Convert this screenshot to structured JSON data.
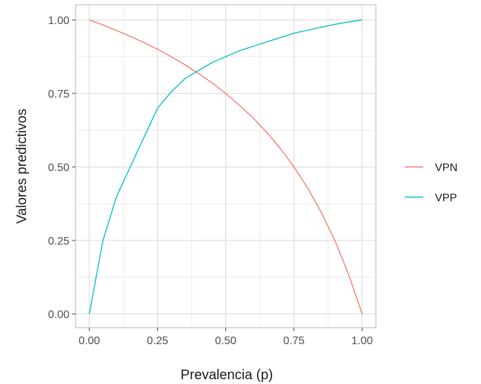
{
  "chart_data": {
    "type": "line",
    "title": "",
    "xlabel": "Prevalencia (p)",
    "ylabel": "Valores predictivos",
    "xlim": [
      0,
      1
    ],
    "ylim": [
      0,
      1
    ],
    "x_ticks": [
      "0.00",
      "0.25",
      "0.50",
      "0.75",
      "1.00"
    ],
    "y_ticks": [
      "0.00",
      "0.25",
      "0.50",
      "0.75",
      "1.00"
    ],
    "grid": true,
    "legend_position": "right",
    "x": [
      0,
      0.05,
      0.1,
      0.15,
      0.2,
      0.25,
      0.3,
      0.35,
      0.4,
      0.45,
      0.5,
      0.55,
      0.6,
      0.65,
      0.7,
      0.75,
      0.8,
      0.85,
      0.9,
      0.95,
      1
    ],
    "series": [
      {
        "name": "VPN",
        "color": "#F8766D",
        "values": [
          1.0,
          0.983,
          0.964,
          0.944,
          0.923,
          0.9,
          0.875,
          0.848,
          0.818,
          0.786,
          0.75,
          0.71,
          0.667,
          0.618,
          0.563,
          0.5,
          0.429,
          0.346,
          0.25,
          0.136,
          0.0
        ]
      },
      {
        "name": "VPP",
        "color": "#00BFC4",
        "values": [
          0.0,
          0.25,
          0.4,
          0.5,
          0.6,
          0.7,
          0.755,
          0.8,
          0.828,
          0.855,
          0.875,
          0.895,
          0.91,
          0.925,
          0.94,
          0.955,
          0.965,
          0.975,
          0.985,
          0.993,
          1.0
        ]
      }
    ]
  }
}
